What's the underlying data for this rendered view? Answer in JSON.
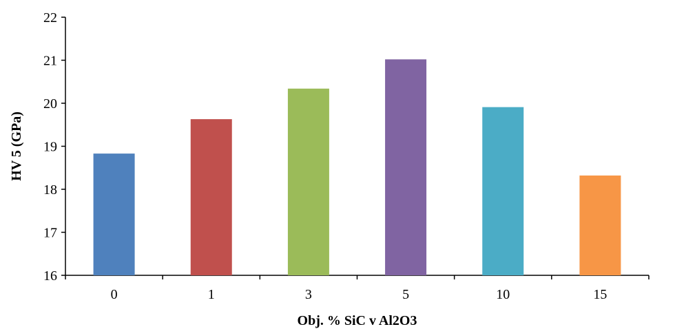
{
  "chart_data": {
    "type": "bar",
    "title": "",
    "xlabel": "Obj. % SiC v Al2O3",
    "ylabel": "HV 5 (GPa)",
    "categories": [
      "0",
      "1",
      "3",
      "5",
      "10",
      "15"
    ],
    "values": [
      18.83,
      19.63,
      20.34,
      21.02,
      19.91,
      18.32
    ],
    "colors": [
      "#4f81bd",
      "#c0504d",
      "#9bbb59",
      "#8064a2",
      "#4bacc6",
      "#f79646"
    ],
    "ylim": [
      16,
      22
    ],
    "yticks": [
      "16",
      "17",
      "18",
      "19",
      "20",
      "21",
      "22"
    ],
    "grid": false,
    "legend": "none"
  }
}
